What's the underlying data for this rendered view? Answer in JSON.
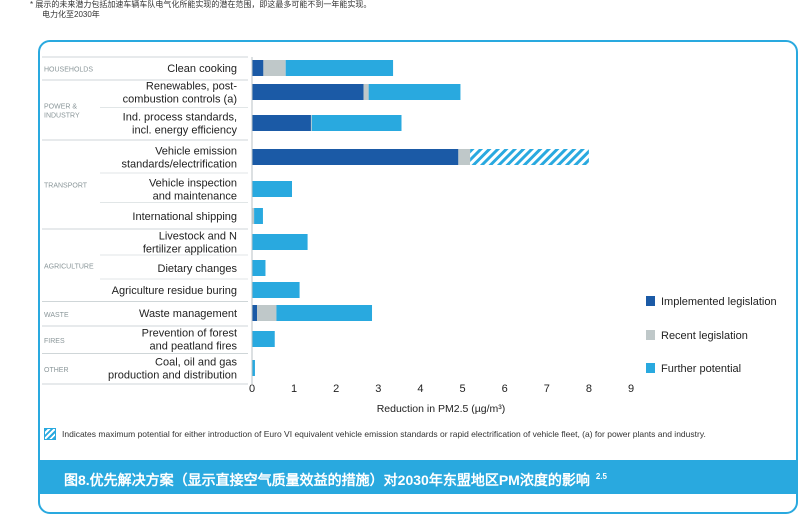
{
  "top_note": {
    "line1": "* 展示的未来潜力包括加速车辆车队电气化所能实现的潜在范围，即这最多可能不到一年能实现。",
    "line2": "电力化至2030年"
  },
  "footnote": "Indicates maximum potential for either introduction of Euro VI equivalent vehicle emission standards or rapid electrification of vehicle fleet, (a) for power plants and industry.",
  "caption": {
    "text": "图8.优先解决方案（显示直接空气质量效益的措施）对2030年东盟地区PM浓度的影响",
    "sup": "2.5"
  },
  "chart_data": {
    "type": "bar",
    "orientation": "horizontal",
    "stacked": true,
    "xlabel": "Reduction in PM2.5 (µg/m³)",
    "xlim": [
      0,
      9
    ],
    "xticks": [
      "0",
      "1",
      "2",
      "3",
      "4",
      "5",
      "6",
      "7",
      "8",
      "9"
    ],
    "grid": false,
    "legend_position": "right",
    "colors": {
      "Implemented legislation": "#1b5aa6",
      "Recent legislation": "#bfc8c9",
      "Further potential": "#29a9df"
    },
    "groups": [
      {
        "name": "HOUSEHOLDS",
        "categories": [
          "Clean cooking"
        ]
      },
      {
        "name": "POWER & INDUSTRY",
        "categories": [
          "Renewables, post-combustion controls (a)",
          "Ind. process standards, incl. energy efficiency"
        ]
      },
      {
        "name": "TRANSPORT",
        "categories": [
          "Vehicle emission standards/electrification",
          "Vehicle inspection and maintenance",
          "International shipping"
        ]
      },
      {
        "name": "AGRICULTURE",
        "categories": [
          "Livestock and N fertilizer application",
          "Dietary changes",
          "Agriculture residue buring"
        ]
      },
      {
        "name": "WASTE",
        "categories": [
          "Waste management"
        ]
      },
      {
        "name": "FIRES",
        "categories": [
          "Prevention of forest and peatland fires"
        ]
      },
      {
        "name": "OTHER",
        "categories": [
          "Coal, oil and gas production and distribution"
        ]
      }
    ],
    "category_lines": [
      [
        "Clean cooking"
      ],
      [
        "Renewables, post-",
        "combustion controls (a)"
      ],
      [
        "Ind. process standards,",
        "incl. energy efficiency"
      ],
      [
        "Vehicle emission",
        "standards/electrification"
      ],
      [
        "Vehicle inspection",
        "and maintenance"
      ],
      [
        "International shipping"
      ],
      [
        "Livestock and N",
        "fertilizer application"
      ],
      [
        "Dietary changes"
      ],
      [
        "Agriculture residue buring"
      ],
      [
        "Waste management"
      ],
      [
        "Prevention of forest",
        "and peatland fires"
      ],
      [
        "Coal, oil and gas",
        "production and distribution"
      ]
    ],
    "group_lines": [
      [
        "HOUSEHOLDS"
      ],
      [
        "POWER &",
        "INDUSTRY"
      ],
      [
        "TRANSPORT"
      ],
      [
        "AGRICULTURE"
      ],
      [
        "WASTE"
      ],
      [
        "FIRES"
      ],
      [
        "OTHER"
      ]
    ],
    "series": [
      {
        "name": "Implemented legislation",
        "values": [
          0.27,
          2.65,
          1.4,
          4.9,
          0,
          0,
          0,
          0,
          0,
          0.12,
          0,
          0
        ]
      },
      {
        "name": "Recent legislation",
        "values": [
          0.53,
          0.12,
          0.02,
          0.28,
          0,
          0.05,
          0,
          0,
          0,
          0.46,
          0,
          0
        ]
      },
      {
        "name": "Further potential",
        "values": [
          2.55,
          2.18,
          2.13,
          2.82,
          0.95,
          0.21,
          1.32,
          0.32,
          1.13,
          2.27,
          0.54,
          0.07
        ]
      }
    ],
    "hatched": {
      "series": "Further potential",
      "category": "Vehicle emission standards/electrification"
    }
  }
}
